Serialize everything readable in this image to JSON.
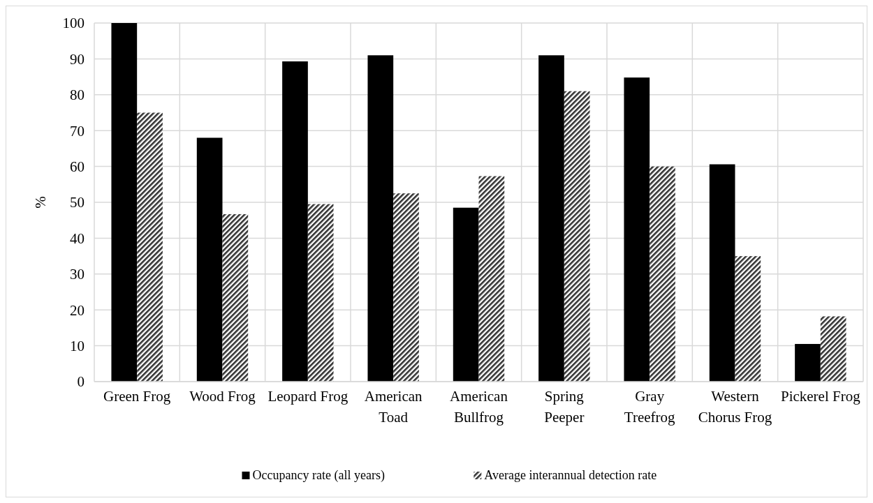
{
  "chart_data": {
    "type": "bar",
    "ylabel": "%",
    "categories": [
      "Green Frog",
      "Wood Frog",
      "Leopard Frog",
      "American Toad",
      "American Bullfrog",
      "Spring Peeper",
      "Gray Treefrog",
      "Western Chorus Frog",
      "Pickerel Frog"
    ],
    "series": [
      {
        "name": "Occupancy rate (all years)",
        "color": "#000000",
        "values": [
          100,
          68,
          89.3,
          91,
          48.5,
          91,
          84.8,
          60.6,
          10.5
        ]
      },
      {
        "name": "Average interannual detection rate",
        "color": "#333333",
        "values": [
          75,
          46.7,
          49.5,
          52.5,
          57.3,
          81,
          60,
          35,
          18.2
        ]
      }
    ],
    "ylim": [
      0,
      100
    ],
    "yticks": [
      0,
      10,
      20,
      30,
      40,
      50,
      60,
      70,
      80,
      90,
      100
    ],
    "grid": true,
    "legend": "bottom"
  }
}
